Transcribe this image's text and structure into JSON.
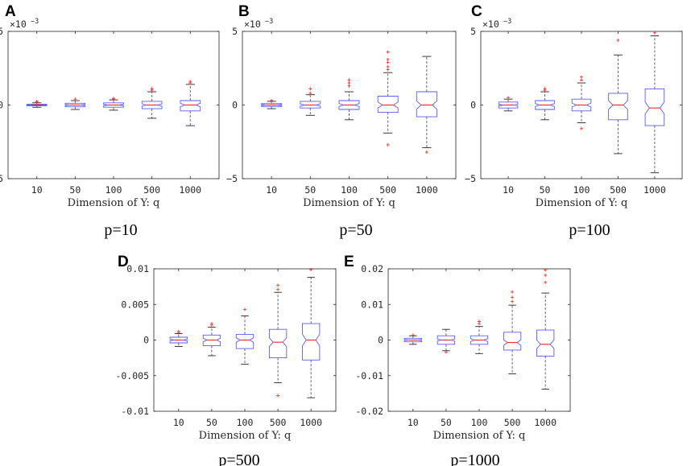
{
  "colors": {
    "box": "#5a5aff",
    "median": "#ff2020",
    "whisker": "#555555",
    "outlier": "#ff3030",
    "axis": "#262626"
  },
  "chart_data": [
    {
      "type": "boxplot",
      "panel_label": "A",
      "title": "p=10",
      "xlabel": "Dimension of Y: q",
      "ylabel": "",
      "categories": [
        "10",
        "50",
        "100",
        "500",
        "1000"
      ],
      "ylim": [
        -0.005,
        0.005
      ],
      "y_ticks": [
        -0.005,
        0,
        0.005
      ],
      "y_tick_labels": [
        "−5",
        "0",
        "5"
      ],
      "y_exponent_label": "×10",
      "y_exponent_power": "−3",
      "boxes": [
        {
          "q1": -5e-05,
          "median": 0,
          "q3": 5e-05,
          "whisker_low": -0.00015,
          "whisker_high": 0.00015,
          "notch": 2e-05,
          "outliers": [
            0.0002,
            0.00025
          ]
        },
        {
          "q1": -0.00012,
          "median": 0,
          "q3": 0.00012,
          "whisker_low": -0.0003,
          "whisker_high": 0.0003,
          "notch": 4e-05,
          "outliers": [
            0.0004
          ]
        },
        {
          "q1": -0.00015,
          "median": 0,
          "q3": 0.00015,
          "whisker_low": -0.00035,
          "whisker_high": 0.00035,
          "notch": 5e-05,
          "outliers": [
            0.0004,
            0.00045
          ]
        },
        {
          "q1": -0.00025,
          "median": 0,
          "q3": 0.00025,
          "whisker_low": -0.0009,
          "whisker_high": 0.0009,
          "notch": 8e-05,
          "outliers": [
            0.001,
            0.0011
          ]
        },
        {
          "q1": -0.0004,
          "median": 0,
          "q3": 0.0003,
          "whisker_low": -0.0014,
          "whisker_high": 0.0014,
          "notch": 0.00012,
          "outliers": [
            0.0015,
            0.0016
          ]
        }
      ]
    },
    {
      "type": "boxplot",
      "panel_label": "B",
      "title": "p=50",
      "xlabel": "Dimension of Y: q",
      "ylabel": "",
      "categories": [
        "10",
        "50",
        "100",
        "500",
        "1000"
      ],
      "ylim": [
        -0.005,
        0.005
      ],
      "y_ticks": [
        -0.005,
        0,
        0.005
      ],
      "y_tick_labels": [
        "−5",
        "0",
        "5"
      ],
      "y_exponent_label": "×10",
      "y_exponent_power": "−3",
      "boxes": [
        {
          "q1": -0.0001,
          "median": 0,
          "q3": 0.0001,
          "whisker_low": -0.00025,
          "whisker_high": 0.00025,
          "notch": 4e-05,
          "outliers": [
            0.0003
          ]
        },
        {
          "q1": -0.0002,
          "median": 0,
          "q3": 0.00025,
          "whisker_low": -0.0007,
          "whisker_high": 0.0007,
          "notch": 8e-05,
          "outliers": [
            0.0008,
            0.0011
          ]
        },
        {
          "q1": -0.0003,
          "median": 0,
          "q3": 0.0003,
          "whisker_low": -0.001,
          "whisker_high": 0.0009,
          "notch": 0.0001,
          "outliers": [
            0.0013,
            0.0015,
            0.0017
          ]
        },
        {
          "q1": -0.0005,
          "median": 0,
          "q3": 0.0006,
          "whisker_low": -0.0019,
          "whisker_high": 0.0022,
          "notch": 0.0002,
          "outliers": [
            -0.0027,
            0.0024,
            0.0026,
            0.0029,
            0.0031,
            0.0036
          ]
        },
        {
          "q1": -0.0008,
          "median": 0,
          "q3": 0.0009,
          "whisker_low": -0.0029,
          "whisker_high": 0.0033,
          "notch": 0.00028,
          "outliers": [
            -0.0032
          ]
        }
      ]
    },
    {
      "type": "boxplot",
      "panel_label": "C",
      "title": "p=100",
      "xlabel": "Dimension of Y: q",
      "ylabel": "",
      "categories": [
        "10",
        "50",
        "100",
        "500",
        "1000"
      ],
      "ylim": [
        -0.005,
        0.005
      ],
      "y_ticks": [
        -0.005,
        0,
        0.005
      ],
      "y_tick_labels": [
        "−5",
        "0",
        "5"
      ],
      "y_exponent_label": "×10",
      "y_exponent_power": "−3",
      "boxes": [
        {
          "q1": -0.0002,
          "median": 0,
          "q3": 0.0002,
          "whisker_low": -0.0004,
          "whisker_high": 0.0004,
          "notch": 5e-05,
          "outliers": [
            0.0005
          ]
        },
        {
          "q1": -0.0003,
          "median": 0,
          "q3": 0.0003,
          "whisker_low": -0.001,
          "whisker_high": 0.0009,
          "notch": 0.0001,
          "outliers": [
            0.001,
            0.0011
          ]
        },
        {
          "q1": -0.0004,
          "median": 0,
          "q3": 0.0004,
          "whisker_low": -0.0012,
          "whisker_high": 0.0015,
          "notch": 0.00013,
          "outliers": [
            -0.0016,
            0.0017,
            0.0019
          ]
        },
        {
          "q1": -0.001,
          "median": 0,
          "q3": 0.0008,
          "whisker_low": -0.0033,
          "whisker_high": 0.0034,
          "notch": 0.0003,
          "outliers": [
            0.0044
          ]
        },
        {
          "q1": -0.0014,
          "median": -0.0002,
          "q3": 0.0011,
          "whisker_low": -0.0046,
          "whisker_high": 0.0047,
          "notch": 0.0004,
          "outliers": [
            0.0049
          ]
        }
      ]
    },
    {
      "type": "boxplot",
      "panel_label": "D",
      "title": "p=500",
      "xlabel": "Dimension of Y: q",
      "ylabel": "",
      "categories": [
        "10",
        "50",
        "100",
        "500",
        "1000"
      ],
      "ylim": [
        -0.01,
        0.01
      ],
      "y_ticks": [
        -0.01,
        -0.005,
        0,
        0.005,
        0.01
      ],
      "y_tick_labels": [
        "-0.01",
        "-0.005",
        "0",
        "0.005",
        "0.01"
      ],
      "boxes": [
        {
          "q1": -0.0004,
          "median": 0,
          "q3": 0.0004,
          "whisker_low": -0.0009,
          "whisker_high": 0.0009,
          "notch": 0.00012,
          "outliers": [
            0.001,
            0.0012
          ]
        },
        {
          "q1": -0.0008,
          "median": 0,
          "q3": 0.0007,
          "whisker_low": -0.0022,
          "whisker_high": 0.0018,
          "notch": 0.00025,
          "outliers": [
            0.0021,
            0.0023
          ]
        },
        {
          "q1": -0.0012,
          "median": 0,
          "q3": 0.0008,
          "whisker_low": -0.0034,
          "whisker_high": 0.0034,
          "notch": 0.0003,
          "outliers": [
            0.0043
          ]
        },
        {
          "q1": -0.0025,
          "median": -0.0003,
          "q3": 0.0015,
          "whisker_low": -0.006,
          "whisker_high": 0.0067,
          "notch": 0.0006,
          "outliers": [
            -0.0078,
            0.0071,
            0.0077
          ]
        },
        {
          "q1": -0.0028,
          "median": 0,
          "q3": 0.0023,
          "whisker_low": -0.0081,
          "whisker_high": 0.0088,
          "notch": 0.0008,
          "outliers": [
            0.0099
          ]
        }
      ]
    },
    {
      "type": "boxplot",
      "panel_label": "E",
      "title": "p=1000",
      "xlabel": "Dimension of Y: q",
      "ylabel": "",
      "categories": [
        "10",
        "50",
        "100",
        "500",
        "1000"
      ],
      "ylim": [
        -0.02,
        0.02
      ],
      "y_ticks": [
        -0.02,
        -0.01,
        0,
        0.01,
        0.02
      ],
      "y_tick_labels": [
        "-0.02",
        "-0.01",
        "0",
        "0.01",
        "0.02"
      ],
      "boxes": [
        {
          "q1": -0.0005,
          "median": 0,
          "q3": 0.0005,
          "whisker_low": -0.0012,
          "whisker_high": 0.0012,
          "notch": 0.00015,
          "outliers": [
            0.0014
          ]
        },
        {
          "q1": -0.0012,
          "median": 0,
          "q3": 0.0012,
          "whisker_low": -0.003,
          "whisker_high": 0.003,
          "notch": 0.0003,
          "outliers": [
            -0.0034
          ]
        },
        {
          "q1": -0.0012,
          "median": 0,
          "q3": 0.0012,
          "whisker_low": -0.0038,
          "whisker_high": 0.0038,
          "notch": 0.0004,
          "outliers": [
            0.0046,
            0.0052
          ]
        },
        {
          "q1": -0.0028,
          "median": -0.0007,
          "q3": 0.0022,
          "whisker_low": -0.0095,
          "whisker_high": 0.0098,
          "notch": 0.0008,
          "outliers": [
            0.0108,
            0.012,
            0.0135
          ]
        },
        {
          "q1": -0.0045,
          "median": -0.0012,
          "q3": 0.0028,
          "whisker_low": -0.0138,
          "whisker_high": 0.0132,
          "notch": 0.0012,
          "outliers": [
            0.0162,
            0.0182,
            0.0197
          ]
        }
      ]
    }
  ]
}
